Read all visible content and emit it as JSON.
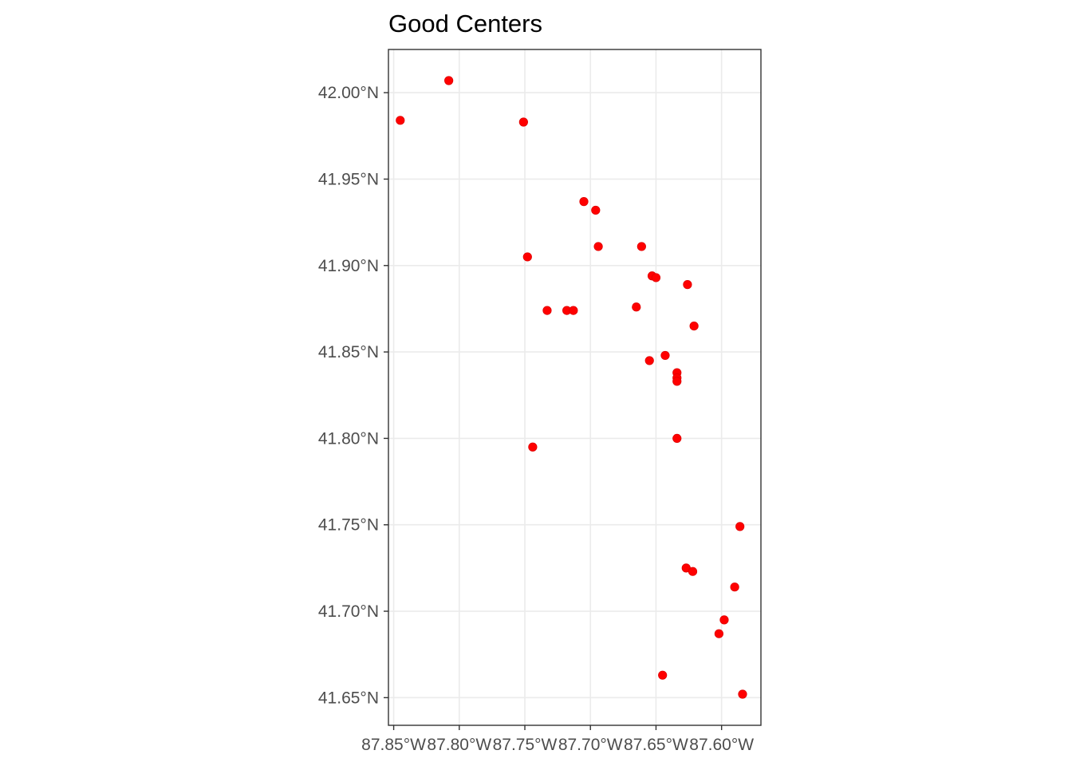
{
  "chart_data": {
    "type": "scatter",
    "title": "Good Centers",
    "xlabel": "",
    "ylabel": "",
    "xlim": [
      -87.854,
      -87.57
    ],
    "ylim": [
      41.634,
      42.025
    ],
    "x_ticks": [
      {
        "value": -87.85,
        "label": "87.85°W"
      },
      {
        "value": -87.8,
        "label": "87.80°W"
      },
      {
        "value": -87.75,
        "label": "87.75°W"
      },
      {
        "value": -87.7,
        "label": "87.70°W"
      },
      {
        "value": -87.65,
        "label": "87.65°W"
      },
      {
        "value": -87.6,
        "label": "87.60°W"
      }
    ],
    "y_ticks": [
      {
        "value": 42.0,
        "label": "42.00°N"
      },
      {
        "value": 41.95,
        "label": "41.95°N"
      },
      {
        "value": 41.9,
        "label": "41.90°N"
      },
      {
        "value": 41.85,
        "label": "41.85°N"
      },
      {
        "value": 41.8,
        "label": "41.80°N"
      },
      {
        "value": 41.75,
        "label": "41.75°N"
      },
      {
        "value": 41.7,
        "label": "41.70°N"
      },
      {
        "value": 41.65,
        "label": "41.65°N"
      }
    ],
    "grid": true,
    "point_color": "#ff0000",
    "points": [
      {
        "x": -87.845,
        "y": 41.984
      },
      {
        "x": -87.808,
        "y": 42.007
      },
      {
        "x": -87.751,
        "y": 41.983
      },
      {
        "x": -87.748,
        "y": 41.905
      },
      {
        "x": -87.744,
        "y": 41.795
      },
      {
        "x": -87.733,
        "y": 41.874
      },
      {
        "x": -87.718,
        "y": 41.874
      },
      {
        "x": -87.713,
        "y": 41.874
      },
      {
        "x": -87.705,
        "y": 41.937
      },
      {
        "x": -87.696,
        "y": 41.932
      },
      {
        "x": -87.694,
        "y": 41.911
      },
      {
        "x": -87.665,
        "y": 41.876
      },
      {
        "x": -87.661,
        "y": 41.911
      },
      {
        "x": -87.655,
        "y": 41.845
      },
      {
        "x": -87.653,
        "y": 41.894
      },
      {
        "x": -87.65,
        "y": 41.893
      },
      {
        "x": -87.645,
        "y": 41.663
      },
      {
        "x": -87.643,
        "y": 41.848
      },
      {
        "x": -87.634,
        "y": 41.838
      },
      {
        "x": -87.634,
        "y": 41.835
      },
      {
        "x": -87.634,
        "y": 41.833
      },
      {
        "x": -87.634,
        "y": 41.8
      },
      {
        "x": -87.627,
        "y": 41.725
      },
      {
        "x": -87.626,
        "y": 41.889
      },
      {
        "x": -87.622,
        "y": 41.723
      },
      {
        "x": -87.621,
        "y": 41.865
      },
      {
        "x": -87.602,
        "y": 41.687
      },
      {
        "x": -87.598,
        "y": 41.695
      },
      {
        "x": -87.59,
        "y": 41.714
      },
      {
        "x": -87.586,
        "y": 41.749
      },
      {
        "x": -87.584,
        "y": 41.652
      }
    ]
  }
}
